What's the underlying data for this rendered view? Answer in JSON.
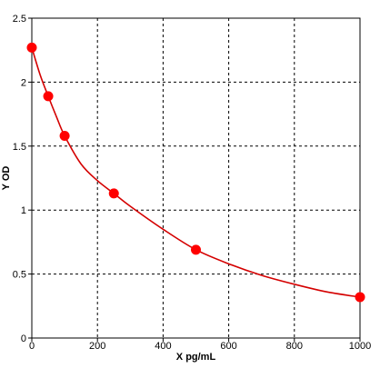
{
  "chart_data": {
    "type": "scatter",
    "xlabel": "X pg/mL",
    "ylabel": "Y OD",
    "xlim": [
      0,
      1000
    ],
    "ylim": [
      0,
      2.5
    ],
    "x_ticks": [
      0,
      200,
      400,
      600,
      800,
      1000
    ],
    "x_tick_labels": [
      "0",
      "200",
      "400",
      "600",
      "800",
      "1000"
    ],
    "y_ticks": [
      0,
      0.5,
      1,
      1.5,
      2,
      2.5
    ],
    "y_tick_labels": [
      "0",
      "0.5",
      "1",
      "1.5",
      "2",
      "2.5"
    ],
    "grid": true,
    "series": [
      {
        "kind": "points",
        "x": [
          0,
          50,
          100,
          250,
          500,
          1000
        ],
        "y": [
          2.27,
          1.89,
          1.58,
          1.13,
          0.69,
          0.32
        ],
        "color": "#ff0000"
      },
      {
        "kind": "fitted-curve",
        "x": [
          0,
          25,
          50,
          75,
          100,
          150,
          200,
          250,
          300,
          400,
          500,
          600,
          700,
          800,
          900,
          1000
        ],
        "y": [
          2.27,
          2.06,
          1.89,
          1.73,
          1.58,
          1.36,
          1.23,
          1.13,
          1.03,
          0.85,
          0.69,
          0.58,
          0.49,
          0.42,
          0.36,
          0.32
        ],
        "color": "#d40000"
      }
    ]
  }
}
